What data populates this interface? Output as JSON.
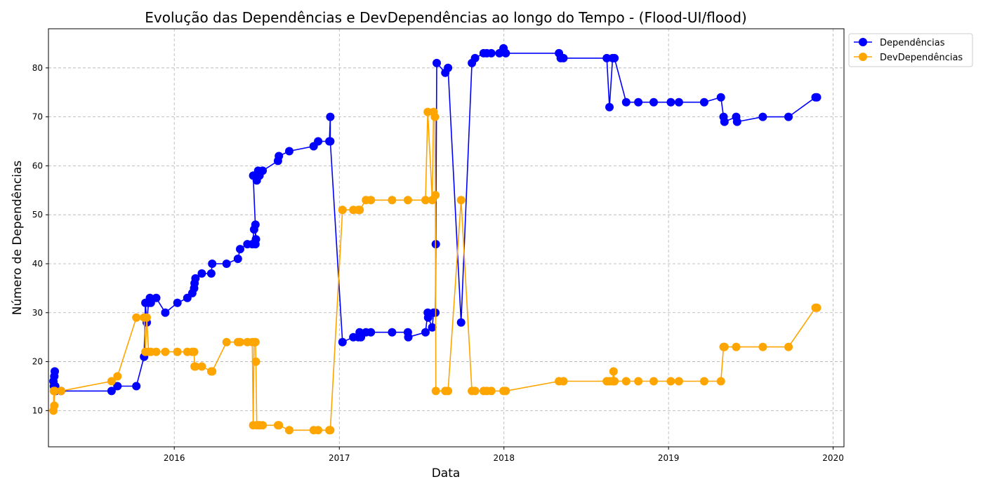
{
  "chart_data": {
    "type": "line",
    "title": "Evolução das Dependências e DevDependências ao longo do Tempo - (Flood-UI/flood)",
    "xlabel": "Data",
    "ylabel": "Número de Dependências",
    "x_ticks": [
      "2016",
      "2017",
      "2018",
      "2019",
      "2020"
    ],
    "y_ticks": [
      10,
      20,
      30,
      40,
      50,
      60,
      70,
      80
    ],
    "xlim": [
      "2015-03-28",
      "2020-01-25"
    ],
    "ylim": [
      2.6,
      88
    ],
    "grid": true,
    "legend_position": "outside upper right",
    "series": [
      {
        "name": "Dependências",
        "color": "#0000ff",
        "points": [
          [
            "2015-04-08",
            16
          ],
          [
            "2015-04-09",
            15
          ],
          [
            "2015-04-10",
            17
          ],
          [
            "2015-04-11",
            18
          ],
          [
            "2015-04-12",
            15
          ],
          [
            "2015-04-13",
            14
          ],
          [
            "2015-04-25",
            14
          ],
          [
            "2015-08-15",
            14
          ],
          [
            "2015-08-28",
            15
          ],
          [
            "2015-10-09",
            15
          ],
          [
            "2015-10-26",
            21
          ],
          [
            "2015-10-29",
            32
          ],
          [
            "2015-11-01",
            28
          ],
          [
            "2015-11-05",
            32
          ],
          [
            "2015-11-08",
            33
          ],
          [
            "2015-11-10",
            32
          ],
          [
            "2015-11-22",
            33
          ],
          [
            "2015-12-12",
            30
          ],
          [
            "2016-01-08",
            32
          ],
          [
            "2016-01-30",
            33
          ],
          [
            "2016-02-10",
            34
          ],
          [
            "2016-02-14",
            35
          ],
          [
            "2016-02-15",
            36
          ],
          [
            "2016-02-17",
            37
          ],
          [
            "2016-03-02",
            38
          ],
          [
            "2016-03-23",
            38
          ],
          [
            "2016-03-25",
            40
          ],
          [
            "2016-04-26",
            40
          ],
          [
            "2016-05-21",
            41
          ],
          [
            "2016-05-26",
            43
          ],
          [
            "2016-06-11",
            44
          ],
          [
            "2016-06-22",
            44
          ],
          [
            "2016-06-26",
            47
          ],
          [
            "2016-06-29",
            48
          ],
          [
            "2016-06-29",
            44
          ],
          [
            "2016-06-30",
            45
          ],
          [
            "2016-06-24",
            58
          ],
          [
            "2016-07-02",
            57
          ],
          [
            "2016-07-05",
            59
          ],
          [
            "2016-07-08",
            58
          ],
          [
            "2016-07-15",
            59
          ],
          [
            "2016-08-18",
            61
          ],
          [
            "2016-08-20",
            62
          ],
          [
            "2016-09-12",
            63
          ],
          [
            "2016-11-05",
            64
          ],
          [
            "2016-11-15",
            65
          ],
          [
            "2016-12-10",
            65
          ],
          [
            "2016-12-12",
            70
          ],
          [
            "2016-12-12",
            65
          ],
          [
            "2017-01-08",
            24
          ],
          [
            "2017-02-01",
            25
          ],
          [
            "2017-02-12",
            25
          ],
          [
            "2017-02-15",
            26
          ],
          [
            "2017-02-18",
            25
          ],
          [
            "2017-03-01",
            26
          ],
          [
            "2017-03-12",
            26
          ],
          [
            "2017-04-28",
            26
          ],
          [
            "2017-06-02",
            26
          ],
          [
            "2017-06-03",
            25
          ],
          [
            "2017-07-11",
            26
          ],
          [
            "2017-07-16",
            30
          ],
          [
            "2017-07-17",
            29
          ],
          [
            "2017-07-26",
            27
          ],
          [
            "2017-07-29",
            30
          ],
          [
            "2017-08-02",
            30
          ],
          [
            "2017-08-03",
            44
          ],
          [
            "2017-08-05",
            81
          ],
          [
            "2017-08-24",
            79
          ],
          [
            "2017-08-30",
            80
          ],
          [
            "2017-09-28",
            28
          ],
          [
            "2017-10-22",
            81
          ],
          [
            "2017-10-29",
            82
          ],
          [
            "2017-11-17",
            83
          ],
          [
            "2017-11-24",
            83
          ],
          [
            "2017-12-04",
            83
          ],
          [
            "2017-12-22",
            83
          ],
          [
            "2017-12-31",
            84
          ],
          [
            "2018-01-05",
            83
          ],
          [
            "2018-05-03",
            83
          ],
          [
            "2018-05-07",
            82
          ],
          [
            "2018-05-13",
            82
          ],
          [
            "2018-08-17",
            82
          ],
          [
            "2018-08-23",
            72
          ],
          [
            "2018-08-30",
            82
          ],
          [
            "2018-09-03",
            82
          ],
          [
            "2018-09-29",
            73
          ],
          [
            "2018-10-26",
            73
          ],
          [
            "2018-11-29",
            73
          ],
          [
            "2019-01-06",
            73
          ],
          [
            "2019-01-24",
            73
          ],
          [
            "2019-03-21",
            73
          ],
          [
            "2019-04-27",
            74
          ],
          [
            "2019-05-03",
            70
          ],
          [
            "2019-05-05",
            69
          ],
          [
            "2019-05-31",
            70
          ],
          [
            "2019-06-02",
            69
          ],
          [
            "2019-07-29",
            70
          ],
          [
            "2019-09-24",
            70
          ],
          [
            "2019-11-23",
            74
          ],
          [
            "2019-11-26",
            74
          ]
        ]
      },
      {
        "name": "DevDependências",
        "color": "#ffa500",
        "points": [
          [
            "2015-04-08",
            10
          ],
          [
            "2015-04-09",
            14
          ],
          [
            "2015-04-10",
            11
          ],
          [
            "2015-04-11",
            14
          ],
          [
            "2015-04-25",
            14
          ],
          [
            "2015-08-15",
            16
          ],
          [
            "2015-08-28",
            17
          ],
          [
            "2015-10-09",
            29
          ],
          [
            "2015-10-26",
            29
          ],
          [
            "2015-10-29",
            22
          ],
          [
            "2015-11-01",
            29
          ],
          [
            "2015-11-05",
            22
          ],
          [
            "2015-11-10",
            22
          ],
          [
            "2015-11-22",
            22
          ],
          [
            "2015-12-12",
            22
          ],
          [
            "2016-01-08",
            22
          ],
          [
            "2016-01-30",
            22
          ],
          [
            "2016-02-10",
            22
          ],
          [
            "2016-02-14",
            22
          ],
          [
            "2016-02-15",
            19
          ],
          [
            "2016-02-17",
            19
          ],
          [
            "2016-03-02",
            19
          ],
          [
            "2016-03-23",
            18
          ],
          [
            "2016-03-25",
            18
          ],
          [
            "2016-04-26",
            24
          ],
          [
            "2016-05-21",
            24
          ],
          [
            "2016-05-26",
            24
          ],
          [
            "2016-06-11",
            24
          ],
          [
            "2016-06-22",
            24
          ],
          [
            "2016-06-24",
            7
          ],
          [
            "2016-06-26",
            24
          ],
          [
            "2016-06-29",
            24
          ],
          [
            "2016-06-30",
            20
          ],
          [
            "2016-07-02",
            7
          ],
          [
            "2016-07-05",
            7
          ],
          [
            "2016-07-08",
            7
          ],
          [
            "2016-07-15",
            7
          ],
          [
            "2016-08-18",
            7
          ],
          [
            "2016-08-20",
            7
          ],
          [
            "2016-09-12",
            6
          ],
          [
            "2016-11-05",
            6
          ],
          [
            "2016-11-15",
            6
          ],
          [
            "2016-12-10",
            6
          ],
          [
            "2016-12-12",
            6
          ],
          [
            "2017-01-08",
            51
          ],
          [
            "2017-02-01",
            51
          ],
          [
            "2017-02-12",
            51
          ],
          [
            "2017-02-15",
            51
          ],
          [
            "2017-03-01",
            53
          ],
          [
            "2017-03-12",
            53
          ],
          [
            "2017-04-28",
            53
          ],
          [
            "2017-06-02",
            53
          ],
          [
            "2017-07-11",
            53
          ],
          [
            "2017-07-16",
            71
          ],
          [
            "2017-07-26",
            53
          ],
          [
            "2017-07-29",
            71
          ],
          [
            "2017-08-01",
            70
          ],
          [
            "2017-08-02",
            54
          ],
          [
            "2017-08-03",
            14
          ],
          [
            "2017-08-24",
            14
          ],
          [
            "2017-08-30",
            14
          ],
          [
            "2017-09-28",
            53
          ],
          [
            "2017-10-22",
            14
          ],
          [
            "2017-10-29",
            14
          ],
          [
            "2017-11-17",
            14
          ],
          [
            "2017-11-24",
            14
          ],
          [
            "2017-12-04",
            14
          ],
          [
            "2017-12-31",
            14
          ],
          [
            "2018-01-05",
            14
          ],
          [
            "2018-05-03",
            16
          ],
          [
            "2018-05-13",
            16
          ],
          [
            "2018-08-17",
            16
          ],
          [
            "2018-08-23",
            16
          ],
          [
            "2018-08-30",
            16
          ],
          [
            "2018-09-01",
            18
          ],
          [
            "2018-09-03",
            16
          ],
          [
            "2018-09-29",
            16
          ],
          [
            "2018-10-26",
            16
          ],
          [
            "2018-11-29",
            16
          ],
          [
            "2019-01-06",
            16
          ],
          [
            "2019-01-24",
            16
          ],
          [
            "2019-03-21",
            16
          ],
          [
            "2019-04-27",
            16
          ],
          [
            "2019-05-03",
            23
          ],
          [
            "2019-05-05",
            23
          ],
          [
            "2019-05-31",
            23
          ],
          [
            "2019-07-29",
            23
          ],
          [
            "2019-09-24",
            23
          ],
          [
            "2019-11-23",
            31
          ],
          [
            "2019-11-26",
            31
          ]
        ]
      }
    ]
  }
}
